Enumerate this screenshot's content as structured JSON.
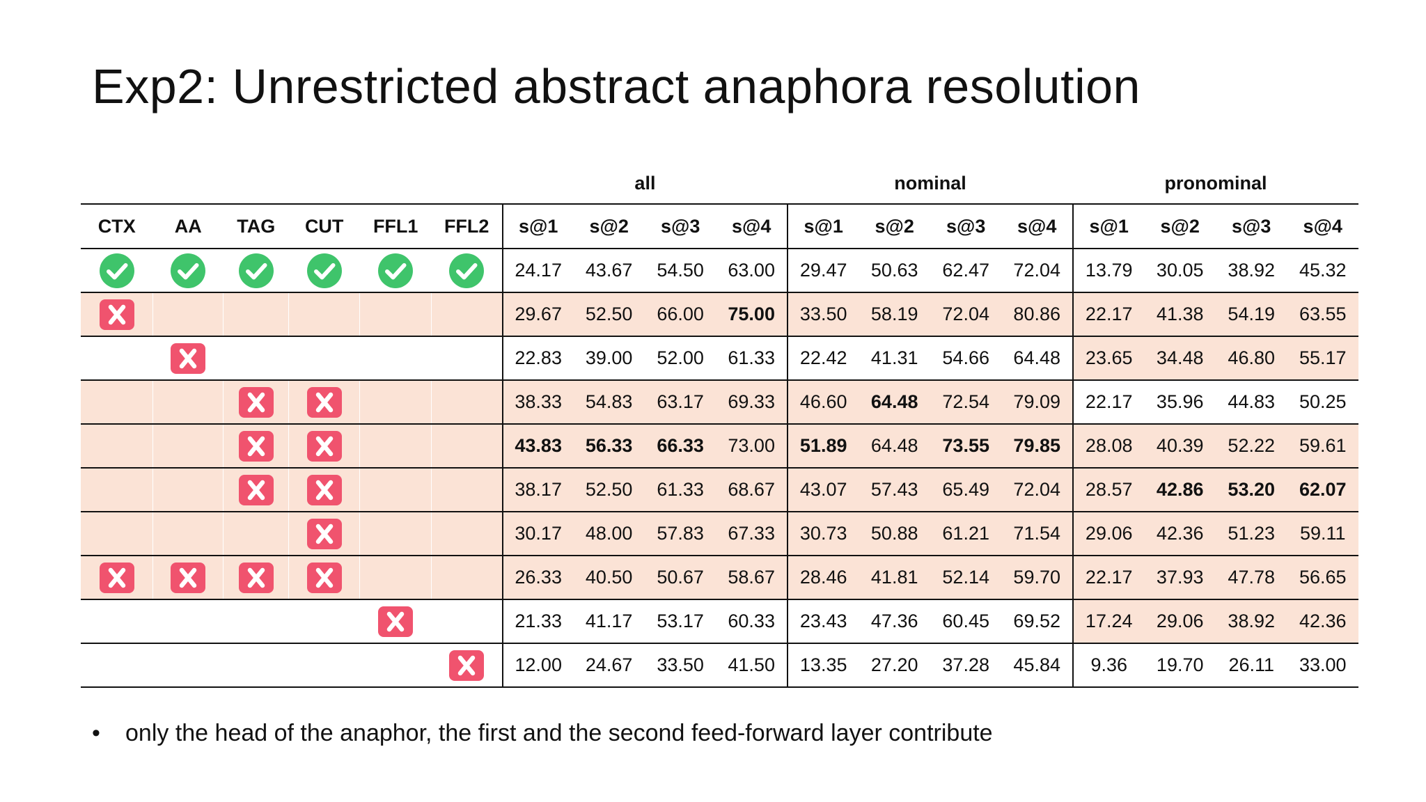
{
  "slide": {
    "title": "Exp2: Unrestricted abstract anaphora resolution",
    "bullet": "•",
    "bullet_text": "only the head of the anaphor, the first and the second feed-forward layer contribute"
  },
  "table": {
    "groups": [
      "all",
      "nominal",
      "pronominal"
    ],
    "config_headers": [
      "CTX",
      "AA",
      "TAG",
      "CUT",
      "FFL1",
      "FFL2"
    ],
    "metric_headers": [
      "s@1",
      "s@2",
      "s@3",
      "s@4",
      "s@1",
      "s@2",
      "s@3",
      "s@4",
      "s@1",
      "s@2",
      "s@3",
      "s@4"
    ],
    "rows": [
      {
        "config": [
          "check",
          "check",
          "check",
          "check",
          "check",
          "check"
        ],
        "values": [
          "24.17",
          "43.67",
          "54.50",
          "63.00",
          "29.47",
          "50.63",
          "62.47",
          "72.04",
          "13.79",
          "30.05",
          "38.92",
          "45.32"
        ],
        "bold": [],
        "config_shaded": false,
        "all_shaded": false,
        "nominal_shaded": false,
        "pronominal_shaded": false
      },
      {
        "config": [
          "cross",
          "",
          "",
          "",
          "",
          ""
        ],
        "values": [
          "29.67",
          "52.50",
          "66.00",
          "75.00",
          "33.50",
          "58.19",
          "72.04",
          "80.86",
          "22.17",
          "41.38",
          "54.19",
          "63.55"
        ],
        "bold": [
          3
        ],
        "config_shaded": true,
        "all_shaded": true,
        "nominal_shaded": true,
        "pronominal_shaded": true
      },
      {
        "config": [
          "",
          "cross",
          "",
          "",
          "",
          ""
        ],
        "values": [
          "22.83",
          "39.00",
          "52.00",
          "61.33",
          "22.42",
          "41.31",
          "54.66",
          "64.48",
          "23.65",
          "34.48",
          "46.80",
          "55.17"
        ],
        "bold": [],
        "config_shaded": false,
        "all_shaded": false,
        "nominal_shaded": false,
        "pronominal_shaded": true
      },
      {
        "config": [
          "",
          "",
          "cross",
          "cross",
          "",
          ""
        ],
        "values": [
          "38.33",
          "54.83",
          "63.17",
          "69.33",
          "46.60",
          "64.48",
          "72.54",
          "79.09",
          "22.17",
          "35.96",
          "44.83",
          "50.25"
        ],
        "bold": [
          5
        ],
        "config_shaded": true,
        "all_shaded": true,
        "nominal_shaded": true,
        "pronominal_shaded": false
      },
      {
        "config": [
          "",
          "",
          "cross",
          "cross",
          "",
          ""
        ],
        "values": [
          "43.83",
          "56.33",
          "66.33",
          "73.00",
          "51.89",
          "64.48",
          "73.55",
          "79.85",
          "28.08",
          "40.39",
          "52.22",
          "59.61"
        ],
        "bold": [
          0,
          1,
          2,
          4,
          6,
          7
        ],
        "config_shaded": true,
        "all_shaded": true,
        "nominal_shaded": true,
        "pronominal_shaded": true
      },
      {
        "config": [
          "",
          "",
          "cross",
          "cross",
          "",
          ""
        ],
        "values": [
          "38.17",
          "52.50",
          "61.33",
          "68.67",
          "43.07",
          "57.43",
          "65.49",
          "72.04",
          "28.57",
          "42.86",
          "53.20",
          "62.07"
        ],
        "bold": [
          9,
          10,
          11
        ],
        "config_shaded": true,
        "all_shaded": true,
        "nominal_shaded": true,
        "pronominal_shaded": true
      },
      {
        "config": [
          "",
          "",
          "",
          "cross",
          "",
          ""
        ],
        "values": [
          "30.17",
          "48.00",
          "57.83",
          "67.33",
          "30.73",
          "50.88",
          "61.21",
          "71.54",
          "29.06",
          "42.36",
          "51.23",
          "59.11"
        ],
        "bold": [],
        "config_shaded": true,
        "all_shaded": true,
        "nominal_shaded": true,
        "pronominal_shaded": true
      },
      {
        "config": [
          "cross",
          "cross",
          "cross",
          "cross",
          "",
          ""
        ],
        "values": [
          "26.33",
          "40.50",
          "50.67",
          "58.67",
          "28.46",
          "41.81",
          "52.14",
          "59.70",
          "22.17",
          "37.93",
          "47.78",
          "56.65"
        ],
        "bold": [],
        "config_shaded": true,
        "all_shaded": true,
        "nominal_shaded": true,
        "pronominal_shaded": true
      },
      {
        "config": [
          "",
          "",
          "",
          "",
          "cross",
          ""
        ],
        "values": [
          "21.33",
          "41.17",
          "53.17",
          "60.33",
          "23.43",
          "47.36",
          "60.45",
          "69.52",
          "17.24",
          "29.06",
          "38.92",
          "42.36"
        ],
        "bold": [],
        "config_shaded": false,
        "all_shaded": false,
        "nominal_shaded": false,
        "pronominal_shaded": true
      },
      {
        "config": [
          "",
          "",
          "",
          "",
          "",
          "cross"
        ],
        "values": [
          "12.00",
          "24.67",
          "33.50",
          "41.50",
          "13.35",
          "27.20",
          "37.28",
          "45.84",
          "9.36",
          "19.70",
          "26.11",
          "33.00"
        ],
        "bold": [],
        "config_shaded": false,
        "all_shaded": false,
        "nominal_shaded": false,
        "pronominal_shaded": false
      }
    ]
  },
  "colors": {
    "check": "#3fc46b",
    "cross": "#f0536e",
    "shade": "#fbe3d6"
  }
}
